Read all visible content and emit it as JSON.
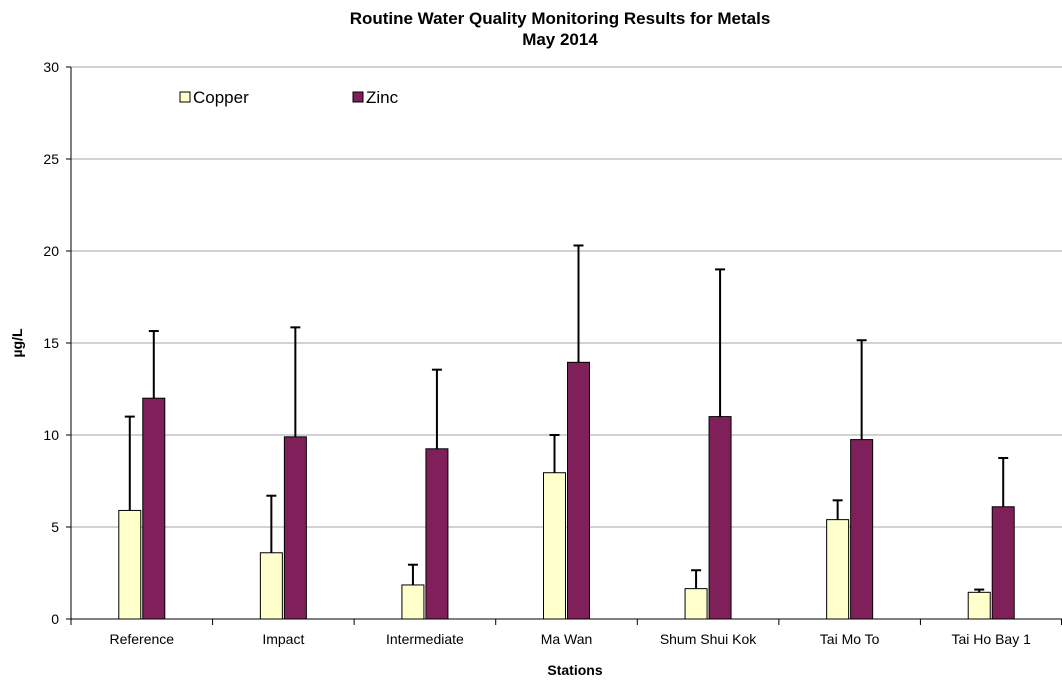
{
  "chart_data": {
    "type": "bar",
    "title": "Routine Water Quality Monitoring Results for Metals",
    "subtitle": "May 2014",
    "xlabel": "Stations",
    "ylabel": "µg/L",
    "ylim": [
      0,
      30
    ],
    "yticks": [
      0,
      5,
      10,
      15,
      20,
      25,
      30
    ],
    "grid": true,
    "legend_position": "top-left",
    "categories": [
      "Reference",
      "Impact",
      "Intermediate",
      "Ma Wan",
      "Shum Shui Kok",
      "Tai Mo To",
      "Tai Ho Bay 1"
    ],
    "series": [
      {
        "name": "Copper",
        "color": "#ffffcc",
        "values": [
          5.9,
          3.6,
          1.85,
          7.95,
          1.65,
          5.4,
          1.45
        ],
        "error_upper": [
          11.0,
          6.7,
          2.95,
          10.0,
          2.65,
          6.45,
          1.6
        ]
      },
      {
        "name": "Zinc",
        "color": "#80205a",
        "values": [
          12.0,
          9.9,
          9.25,
          13.95,
          11.0,
          9.75,
          6.1
        ],
        "error_upper": [
          15.65,
          15.85,
          13.55,
          20.3,
          19.0,
          15.15,
          8.75
        ]
      }
    ]
  }
}
